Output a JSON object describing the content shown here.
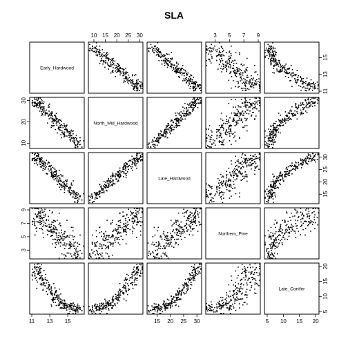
{
  "chart_data": {
    "type": "scatter_matrix",
    "title": "SLA",
    "variables": [
      {
        "name": "Early_Hardwood",
        "range": [
          11,
          16.6
        ],
        "ticks": [
          11,
          13,
          15
        ],
        "axis_side": "bottom",
        "tick_labels": [
          "11",
          "13",
          "15"
        ]
      },
      {
        "name": "North_Mid_Hardwood",
        "range": [
          8.5,
          30.5
        ],
        "ticks": [
          10,
          15,
          20,
          25,
          30
        ],
        "axis_side": "top",
        "tick_labels": [
          "10",
          "15",
          "20",
          "25",
          "30"
        ],
        "left_ticks": [
          10,
          20,
          30
        ],
        "left_tick_labels": [
          "10",
          "20",
          "30"
        ]
      },
      {
        "name": "Late_Hardwood",
        "range": [
          12.0,
          31.0
        ],
        "ticks": [
          15,
          20,
          25,
          30
        ],
        "axis_side": "bottom",
        "tick_labels": [
          "15",
          "20",
          "25",
          "30"
        ]
      },
      {
        "name": "Northern_Pine",
        "range": [
          2.0,
          9.0
        ],
        "ticks": [
          3,
          5,
          7,
          9
        ],
        "axis_side": "top",
        "tick_labels": [
          "3",
          "5",
          "7",
          "9"
        ]
      },
      {
        "name": "Late_Conifer",
        "range": [
          4.8,
          20.4
        ],
        "ticks": [
          5,
          10,
          15,
          20
        ],
        "axis_side": "bottom",
        "tick_labels": [
          "5",
          "10",
          "15",
          "20"
        ]
      }
    ],
    "n_points": 250,
    "axis_layout": {
      "top": [
        1,
        3
      ],
      "bottom": [
        0,
        2,
        4
      ],
      "right": [
        0,
        2,
        4
      ],
      "left": [
        1,
        3
      ]
    }
  }
}
